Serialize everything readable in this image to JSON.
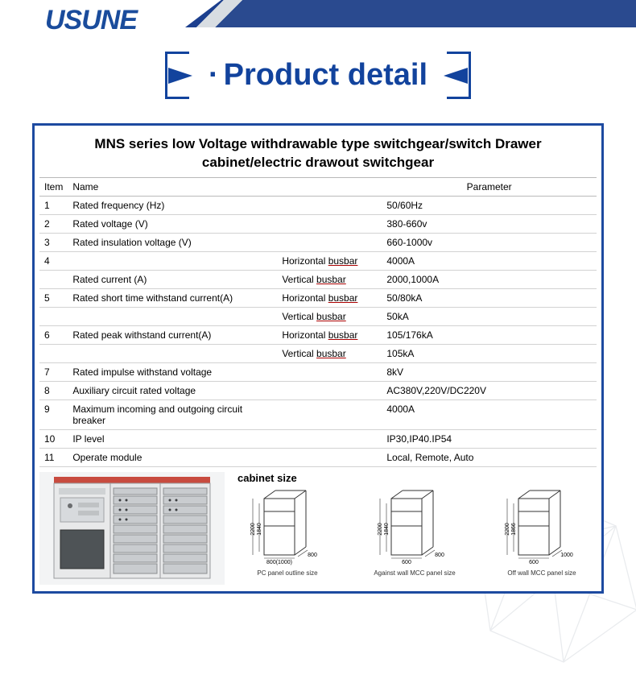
{
  "brand": {
    "logo_text": "USUNE"
  },
  "section": {
    "title": "Product detail",
    "accent_color": "#12439d"
  },
  "table": {
    "title": "MNS series low Voltage withdrawable type switchgear/switch Drawer cabinet/electric drawout switchgear",
    "headers": {
      "item": "Item",
      "name": "Name",
      "parameter": "Parameter"
    },
    "rows": [
      {
        "item": "1",
        "name": "Rated frequency (Hz)",
        "sub": "",
        "param": "50/60Hz"
      },
      {
        "item": "2",
        "name": "Rated voltage (V)",
        "sub": "",
        "param": "380-660v"
      },
      {
        "item": "3",
        "name": "Rated insulation voltage (V)",
        "sub": "",
        "param": "660-1000v"
      },
      {
        "item": "4",
        "name": "",
        "sub": "Horizontal busbar",
        "param": "4000A",
        "ul": true
      },
      {
        "item": "",
        "name": "Rated current (A)",
        "sub": "Vertical busbar",
        "param": "2000,1000A",
        "ul": true
      },
      {
        "item": "5",
        "name": "Rated short time withstand current(A)",
        "sub": "Horizontal busbar",
        "param": "50/80kA",
        "ul": true
      },
      {
        "item": "",
        "name": "",
        "sub": "Vertical busbar",
        "param": "50kA",
        "ul": true
      },
      {
        "item": "6",
        "name": "Rated peak withstand current(A)",
        "sub": "Horizontal busbar",
        "param": "105/176kA",
        "ul": true
      },
      {
        "item": "",
        "name": "",
        "sub": "Vertical busbar",
        "param": "105kA",
        "ul": true
      },
      {
        "item": "7",
        "name": "Rated impulse withstand voltage",
        "sub": "",
        "param": "8kV"
      },
      {
        "item": "8",
        "name": "Auxiliary circuit rated voltage",
        "sub": "",
        "param": "AC380V,220V/DC220V"
      },
      {
        "item": "9",
        "name": "Maximum incoming and outgoing circuit breaker",
        "sub": "",
        "param": "4000A"
      },
      {
        "item": "10",
        "name": "IP level",
        "sub": "",
        "param": "IP30,IP40.IP54"
      },
      {
        "item": "11",
        "name": "Operate module",
        "sub": "",
        "param": "Local, Remote, Auto"
      }
    ]
  },
  "cabinet": {
    "title": "cabinet size",
    "diagrams": [
      {
        "height": "2200",
        "inner_height": "1840",
        "width": "800(1000)",
        "depth": "800",
        "caption": "PC panel outline size"
      },
      {
        "height": "2200",
        "inner_height": "1840",
        "width": "600",
        "depth": "800",
        "caption": "Against wall MCC panel size"
      },
      {
        "height": "2200",
        "inner_height": "1866",
        "width": "600",
        "depth": "1000",
        "caption": "Off wall MCC panel size"
      }
    ]
  },
  "colors": {
    "brand_blue": "#1a4c9c",
    "border_blue": "#1d4aa0",
    "grid": "#d2d2d2",
    "cabinet_base": "#c84b3f"
  }
}
